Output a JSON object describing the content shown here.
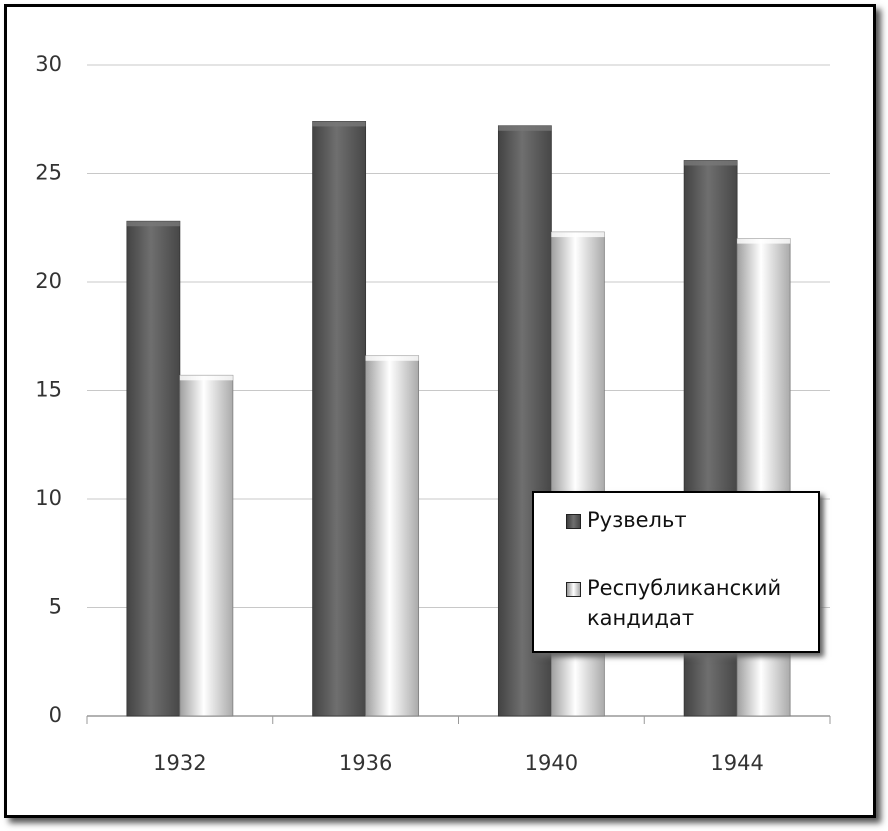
{
  "chart_data": {
    "type": "bar",
    "categories": [
      "1932",
      "1936",
      "1940",
      "1944"
    ],
    "series": [
      {
        "name": "Рузвельт",
        "color": "#595959",
        "values": [
          22.8,
          27.4,
          27.2,
          25.6
        ]
      },
      {
        "name": "Республиканский кандидат",
        "color": "#d4d4d4",
        "values": [
          15.7,
          16.6,
          22.3,
          22.0
        ]
      }
    ],
    "ylim": [
      0,
      30
    ],
    "yticks": [
      0,
      5,
      10,
      15,
      20,
      25,
      30
    ],
    "grid": true,
    "legend_position": "lower right"
  }
}
